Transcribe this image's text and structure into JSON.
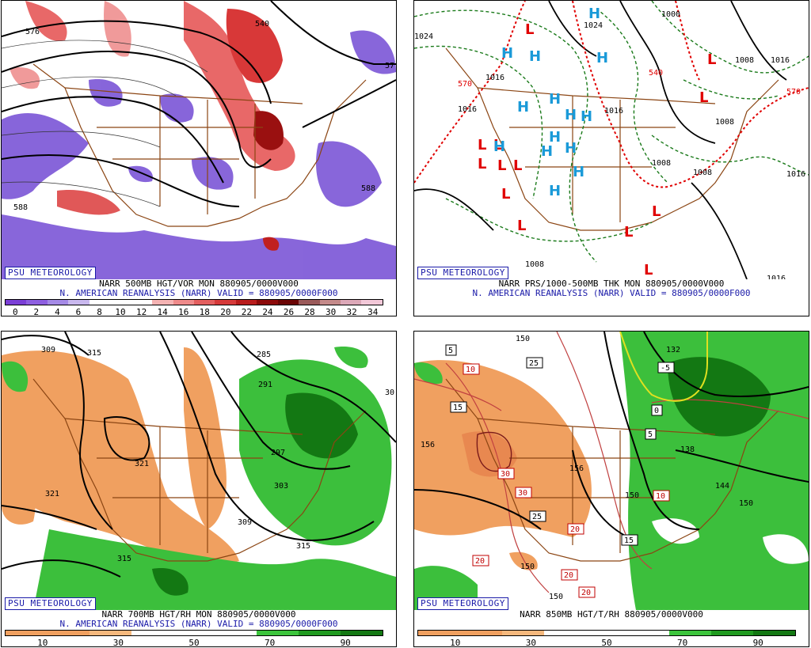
{
  "panels": [
    {
      "id": "vor500",
      "badge": "PSU METEOROLOGY",
      "line1": "NARR 500MB HGT/VOR MON 880905/0000V000",
      "line2": "N. AMERICAN REANALYSIS (NARR) VALID = 880905/0000F000",
      "colorbar": {
        "colors": [
          "#7b3fd6",
          "#8e5fe0",
          "#a58ae6",
          "#c9b8ee",
          "#ffffff",
          "#ffffff",
          "#ffffff",
          "#f5b3b3",
          "#ee8a8a",
          "#e35f5f",
          "#d63a3a",
          "#b81c1c",
          "#8c0a0a",
          "#6a0505",
          "#9a5a5a",
          "#c48a8a",
          "#dca8b8",
          "#f2c8d8"
        ],
        "ticks": [
          "0",
          "2",
          "4",
          "6",
          "8",
          "10",
          "12",
          "14",
          "16",
          "18",
          "20",
          "22",
          "24",
          "26",
          "28",
          "30",
          "32",
          "34"
        ]
      },
      "contour_labels": [
        "576",
        "540",
        "57",
        "588",
        "588"
      ]
    },
    {
      "id": "thk",
      "badge": "PSU METEOROLOGY",
      "line1": "NARR PRS/1000-500MB THK MON 880905/0000V000",
      "line2": "N. AMERICAN REANALYSIS (NARR) VALID = 880905/0000F000",
      "contour_labels": [
        "1024",
        "1024",
        "1000",
        "1016",
        "1008",
        "1016",
        "1016",
        "1016",
        "1008",
        "1008",
        "1008",
        "1016",
        "1016",
        "1008",
        "570",
        "540",
        "570"
      ]
    },
    {
      "id": "rh700",
      "badge": "PSU METEOROLOGY",
      "line1": "NARR 700MB HGT/RH MON 880905/0000V000",
      "line2": "N. AMERICAN REANALYSIS (NARR) VALID = 880905/0000F000",
      "colorbar": {
        "colors": [
          "#f0a060",
          "#f0a060",
          "#f5b87d",
          "#ffffff",
          "#ffffff",
          "#ffffff",
          "#3cc43c",
          "#1f9a1f",
          "#137813"
        ],
        "ticks": [
          "10",
          "30",
          "50",
          "70",
          "90"
        ]
      },
      "contour_labels": [
        "309",
        "315",
        "285",
        "291",
        "297",
        "303",
        "309",
        "315",
        "321",
        "321",
        "315",
        "30"
      ]
    },
    {
      "id": "t850",
      "badge": "PSU METEOROLOGY",
      "line1": "NARR 850MB HGT/T/RH 880905/0000V000",
      "colorbar": {
        "colors": [
          "#f0a060",
          "#f0a060",
          "#f5b87d",
          "#ffffff",
          "#ffffff",
          "#ffffff",
          "#3cc43c",
          "#1f9a1f",
          "#137813"
        ],
        "ticks": [
          "10",
          "30",
          "50",
          "70",
          "90"
        ]
      },
      "contour_labels": [
        "150",
        "156",
        "132",
        "138",
        "144",
        "150",
        "156",
        "150",
        "150",
        "150"
      ],
      "temp_boxes": [
        "5",
        "10",
        "25",
        "15",
        "-5",
        "0",
        "5",
        "30",
        "30",
        "25",
        "10",
        "20",
        "15",
        "20",
        "20",
        "20"
      ]
    }
  ]
}
